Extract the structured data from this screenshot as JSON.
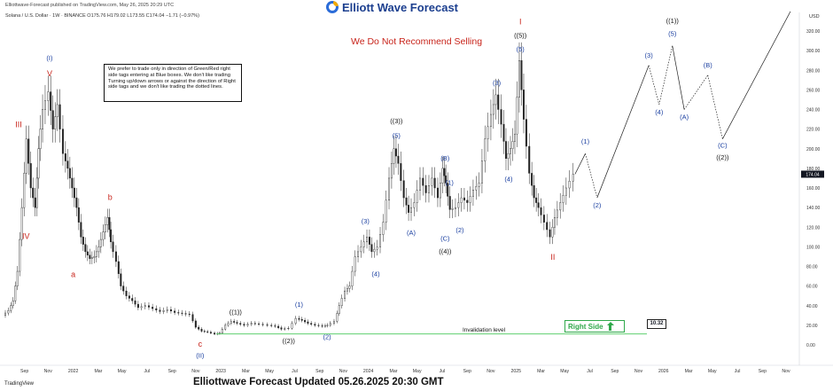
{
  "header": {
    "publisher_line": "Elliottwave-Forecast published on TradingView.com, May 26, 2025 20:29 UTC",
    "symbol_line": "Solana / U.S. Dollar · 1W · BINANCE  O175.76  H179.02  L173.55  C174.04  −1.71 (−0.97%)"
  },
  "brand": {
    "name": "Elliott Wave Forecast",
    "icon": "elliott-wave-logo-icon"
  },
  "headline": "We Do Not Recommend Selling",
  "note": "We prefer to trade only in direction of Green/Red right side tags entering at Blue boxes. We don't like trading Turning up/down arrows or against the direction of Right side tags and we don't like trading the dotted lines.",
  "invalidation": {
    "label": "Invalidation level",
    "value": "10.32"
  },
  "right_side": {
    "label": "Right Side",
    "icon": "arrow-up-icon",
    "color": "#2fa84a"
  },
  "footer": {
    "tv": "TradingView",
    "caption": "Elliottwave Forecast Updated 05.26.2025 20:30 GMT"
  },
  "colors": {
    "blue_label": "#1a3fa0",
    "red_label": "#c8241b",
    "green_line": "#2fa84a"
  },
  "chart_data": {
    "type": "line",
    "currency": "USD",
    "y_ticks": [
      0,
      20,
      40,
      60,
      80,
      100,
      120,
      140,
      160,
      180,
      200,
      220,
      240,
      260,
      280,
      300,
      320
    ],
    "y_tick_labels": [
      "0.00",
      "20.00",
      "40.00",
      "60.00",
      "80.00",
      "100.00",
      "120.00",
      "140.00",
      "160.00",
      "180.00",
      "200.00",
      "220.00",
      "240.00",
      "260.00",
      "280.00",
      "300.00",
      "320.00"
    ],
    "ylim": [
      -18,
      335
    ],
    "last_price": 174.04,
    "last_price_label": "174.04",
    "x_ticks": [
      {
        "t": 2021.67,
        "label": "Sep"
      },
      {
        "t": 2021.83,
        "label": "Nov"
      },
      {
        "t": 2022.0,
        "label": "2022"
      },
      {
        "t": 2022.17,
        "label": "Mar"
      },
      {
        "t": 2022.33,
        "label": "May"
      },
      {
        "t": 2022.5,
        "label": "Jul"
      },
      {
        "t": 2022.67,
        "label": "Sep"
      },
      {
        "t": 2022.83,
        "label": "Nov"
      },
      {
        "t": 2023.0,
        "label": "2023"
      },
      {
        "t": 2023.17,
        "label": "Mar"
      },
      {
        "t": 2023.33,
        "label": "May"
      },
      {
        "t": 2023.5,
        "label": "Jul"
      },
      {
        "t": 2023.67,
        "label": "Sep"
      },
      {
        "t": 2023.83,
        "label": "Nov"
      },
      {
        "t": 2024.0,
        "label": "2024"
      },
      {
        "t": 2024.17,
        "label": "Mar"
      },
      {
        "t": 2024.33,
        "label": "May"
      },
      {
        "t": 2024.5,
        "label": "Jul"
      },
      {
        "t": 2024.67,
        "label": "Sep"
      },
      {
        "t": 2024.83,
        "label": "Nov"
      },
      {
        "t": 2025.0,
        "label": "2025"
      },
      {
        "t": 2025.17,
        "label": "Mar"
      },
      {
        "t": 2025.33,
        "label": "May"
      },
      {
        "t": 2025.5,
        "label": "Jul"
      },
      {
        "t": 2025.67,
        "label": "Sep"
      },
      {
        "t": 2025.83,
        "label": "Nov"
      },
      {
        "t": 2026.0,
        "label": "2026"
      },
      {
        "t": 2026.17,
        "label": "Mar"
      },
      {
        "t": 2026.33,
        "label": "May"
      },
      {
        "t": 2026.5,
        "label": "Jul"
      },
      {
        "t": 2026.67,
        "label": "Sep"
      },
      {
        "t": 2026.83,
        "label": "Nov"
      }
    ],
    "price_path": [
      [
        2021.53,
        30
      ],
      [
        2021.57,
        35
      ],
      [
        2021.6,
        45
      ],
      [
        2021.63,
        75
      ],
      [
        2021.66,
        140
      ],
      [
        2021.69,
        210
      ],
      [
        2021.72,
        160
      ],
      [
        2021.75,
        140
      ],
      [
        2021.77,
        200
      ],
      [
        2021.8,
        240
      ],
      [
        2021.84,
        258
      ],
      [
        2021.87,
        220
      ],
      [
        2021.9,
        245
      ],
      [
        2021.94,
        195
      ],
      [
        2021.97,
        180
      ],
      [
        2022.0,
        160
      ],
      [
        2022.03,
        140
      ],
      [
        2022.06,
        110
      ],
      [
        2022.09,
        95
      ],
      [
        2022.12,
        88
      ],
      [
        2022.15,
        90
      ],
      [
        2022.18,
        100
      ],
      [
        2022.21,
        115
      ],
      [
        2022.24,
        130
      ],
      [
        2022.26,
        105
      ],
      [
        2022.3,
        85
      ],
      [
        2022.33,
        60
      ],
      [
        2022.37,
        50
      ],
      [
        2022.41,
        45
      ],
      [
        2022.45,
        38
      ],
      [
        2022.5,
        40
      ],
      [
        2022.55,
        37
      ],
      [
        2022.6,
        34
      ],
      [
        2022.65,
        36
      ],
      [
        2022.7,
        33
      ],
      [
        2022.75,
        32
      ],
      [
        2022.8,
        31
      ],
      [
        2022.84,
        18
      ],
      [
        2022.88,
        14
      ],
      [
        2022.92,
        13
      ],
      [
        2022.97,
        11
      ],
      [
        2023.0,
        12
      ],
      [
        2023.04,
        20
      ],
      [
        2023.08,
        24
      ],
      [
        2023.12,
        22
      ],
      [
        2023.17,
        20
      ],
      [
        2023.22,
        22
      ],
      [
        2023.27,
        21
      ],
      [
        2023.33,
        20
      ],
      [
        2023.38,
        19
      ],
      [
        2023.42,
        16
      ],
      [
        2023.47,
        17
      ],
      [
        2023.52,
        27
      ],
      [
        2023.56,
        25
      ],
      [
        2023.6,
        22
      ],
      [
        2023.65,
        20
      ],
      [
        2023.7,
        19
      ],
      [
        2023.73,
        20
      ],
      [
        2023.78,
        24
      ],
      [
        2023.81,
        40
      ],
      [
        2023.85,
        55
      ],
      [
        2023.88,
        60
      ],
      [
        2023.92,
        90
      ],
      [
        2023.96,
        100
      ],
      [
        2024.0,
        110
      ],
      [
        2024.03,
        95
      ],
      [
        2024.07,
        100
      ],
      [
        2024.11,
        125
      ],
      [
        2024.15,
        170
      ],
      [
        2024.18,
        200
      ],
      [
        2024.21,
        185
      ],
      [
        2024.25,
        150
      ],
      [
        2024.28,
        135
      ],
      [
        2024.32,
        145
      ],
      [
        2024.36,
        170
      ],
      [
        2024.4,
        155
      ],
      [
        2024.44,
        170
      ],
      [
        2024.48,
        150
      ],
      [
        2024.51,
        180
      ],
      [
        2024.53,
        165
      ],
      [
        2024.56,
        138
      ],
      [
        2024.6,
        140
      ],
      [
        2024.64,
        150
      ],
      [
        2024.68,
        145
      ],
      [
        2024.72,
        158
      ],
      [
        2024.76,
        165
      ],
      [
        2024.8,
        210
      ],
      [
        2024.84,
        235
      ],
      [
        2024.87,
        255
      ],
      [
        2024.91,
        225
      ],
      [
        2024.94,
        190
      ],
      [
        2024.97,
        200
      ],
      [
        2025.0,
        215
      ],
      [
        2025.03,
        290
      ],
      [
        2025.06,
        230
      ],
      [
        2025.1,
        175
      ],
      [
        2025.13,
        150
      ],
      [
        2025.16,
        140
      ],
      [
        2025.2,
        125
      ],
      [
        2025.24,
        110
      ],
      [
        2025.27,
        130
      ],
      [
        2025.31,
        145
      ],
      [
        2025.35,
        160
      ],
      [
        2025.4,
        174
      ]
    ],
    "projection_path": [
      [
        2025.4,
        174
      ],
      [
        2025.47,
        195
      ],
      [
        2025.55,
        150
      ],
      [
        2025.9,
        285
      ],
      [
        2025.97,
        245
      ],
      [
        2026.06,
        305
      ],
      [
        2026.14,
        240
      ],
      [
        2026.3,
        275
      ],
      [
        2026.4,
        210
      ],
      [
        2026.86,
        340
      ]
    ],
    "projection_dotted": [
      [
        1,
        2
      ],
      [
        3,
        4
      ],
      [
        4,
        5
      ],
      [
        6,
        7
      ],
      [
        7,
        8
      ]
    ],
    "invalidation_level": 10.32,
    "invalidation_range": [
      2022.97,
      2025.55
    ],
    "wave_labels": [
      {
        "t": 2021.63,
        "v": 222,
        "text": "III",
        "color": "red"
      },
      {
        "t": 2021.68,
        "v": 108,
        "text": "IV",
        "color": "red"
      },
      {
        "t": 2021.84,
        "v": 290,
        "text": "(I)",
        "color": "blue"
      },
      {
        "t": 2021.84,
        "v": 274,
        "text": "V",
        "color": "red"
      },
      {
        "t": 2022.0,
        "v": 69,
        "text": "a",
        "color": "red"
      },
      {
        "t": 2022.25,
        "v": 148,
        "text": "b",
        "color": "red"
      },
      {
        "t": 2022.86,
        "v": -2,
        "text": "c",
        "color": "red"
      },
      {
        "t": 2022.86,
        "v": -13,
        "text": "(II)",
        "color": "blue"
      },
      {
        "t": 2023.1,
        "v": 31,
        "text": "((1))",
        "color": "black"
      },
      {
        "t": 2023.46,
        "v": 2,
        "text": "((2))",
        "color": "black"
      },
      {
        "t": 2023.53,
        "v": 39,
        "text": "(1)",
        "color": "blue"
      },
      {
        "t": 2023.72,
        "v": 6,
        "text": "(2)",
        "color": "blue"
      },
      {
        "t": 2023.98,
        "v": 124,
        "text": "(3)",
        "color": "blue"
      },
      {
        "t": 2024.05,
        "v": 70,
        "text": "(4)",
        "color": "blue"
      },
      {
        "t": 2024.19,
        "v": 226,
        "text": "((3))",
        "color": "black"
      },
      {
        "t": 2024.19,
        "v": 211,
        "text": "(5)",
        "color": "blue"
      },
      {
        "t": 2024.29,
        "v": 112,
        "text": "(A)",
        "color": "blue"
      },
      {
        "t": 2024.52,
        "v": 188,
        "text": "(B)",
        "color": "blue"
      },
      {
        "t": 2024.55,
        "v": 163,
        "text": "(1)",
        "color": "blue"
      },
      {
        "t": 2024.52,
        "v": 106,
        "text": "(C)",
        "color": "blue"
      },
      {
        "t": 2024.52,
        "v": 93,
        "text": "((4))",
        "color": "black"
      },
      {
        "t": 2024.62,
        "v": 115,
        "text": "(2)",
        "color": "blue"
      },
      {
        "t": 2024.87,
        "v": 265,
        "text": "(3)",
        "color": "blue"
      },
      {
        "t": 2024.95,
        "v": 167,
        "text": "(4)",
        "color": "blue"
      },
      {
        "t": 2025.03,
        "v": 327,
        "text": "I",
        "color": "red"
      },
      {
        "t": 2025.03,
        "v": 313,
        "text": "((5))",
        "color": "black"
      },
      {
        "t": 2025.03,
        "v": 299,
        "text": "(5)",
        "color": "blue"
      },
      {
        "t": 2025.25,
        "v": 87,
        "text": "II",
        "color": "red"
      },
      {
        "t": 2025.47,
        "v": 205,
        "text": "(1)",
        "color": "blue"
      },
      {
        "t": 2025.55,
        "v": 140,
        "text": "(2)",
        "color": "blue"
      },
      {
        "t": 2025.9,
        "v": 293,
        "text": "(3)",
        "color": "blue"
      },
      {
        "t": 2025.97,
        "v": 235,
        "text": "(4)",
        "color": "blue"
      },
      {
        "t": 2026.06,
        "v": 328,
        "text": "((1))",
        "color": "black"
      },
      {
        "t": 2026.06,
        "v": 315,
        "text": "(5)",
        "color": "blue"
      },
      {
        "t": 2026.14,
        "v": 230,
        "text": "(A)",
        "color": "blue"
      },
      {
        "t": 2026.3,
        "v": 283,
        "text": "(B)",
        "color": "blue"
      },
      {
        "t": 2026.4,
        "v": 201,
        "text": "(C)",
        "color": "blue"
      },
      {
        "t": 2026.4,
        "v": 189,
        "text": "((2))",
        "color": "black"
      }
    ]
  }
}
